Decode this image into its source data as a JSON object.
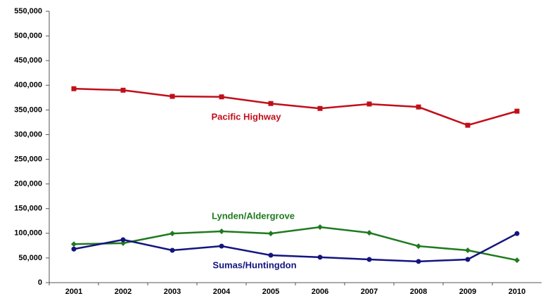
{
  "chart_data": {
    "type": "line",
    "categories": [
      "2001",
      "2002",
      "2003",
      "2004",
      "2005",
      "2006",
      "2007",
      "2008",
      "2009",
      "2010"
    ],
    "series": [
      {
        "name": "Pacific Highway",
        "color": "#c00f1a",
        "marker": "square",
        "values": [
          393000,
          390000,
          377500,
          376500,
          363000,
          353000,
          362000,
          356000,
          319000,
          347500
        ]
      },
      {
        "name": "Lynden/Aldergrove",
        "color": "#1f7a1f",
        "marker": "diamond",
        "values": [
          78000,
          80000,
          99500,
          104000,
          99500,
          112500,
          101000,
          74000,
          65500,
          45500
        ]
      },
      {
        "name": "Sumas/Huntingdon",
        "color": "#14147f",
        "marker": "circle",
        "values": [
          68000,
          87000,
          65500,
          74000,
          55500,
          51500,
          47000,
          43000,
          47000,
          99500
        ]
      }
    ],
    "ylim": [
      0,
      550000
    ],
    "yticks": [
      0,
      {
        "value": 50000,
        "label": "50,000"
      },
      {
        "value": 100000,
        "label": "100,000"
      },
      {
        "value": 150000,
        "label": "150,000"
      },
      {
        "value": 200000,
        "label": "200,000"
      },
      {
        "value": 250000,
        "label": "250,000"
      },
      {
        "value": 300000,
        "label": "300,000"
      },
      {
        "value": 350000,
        "label": "350,000"
      },
      {
        "value": 400000,
        "label": "400,000"
      },
      {
        "value": 450000,
        "label": "450,000"
      },
      {
        "value": 500000,
        "label": "500,000"
      },
      {
        "value": 550000,
        "label": "550,000"
      }
    ],
    "grid": false
  }
}
